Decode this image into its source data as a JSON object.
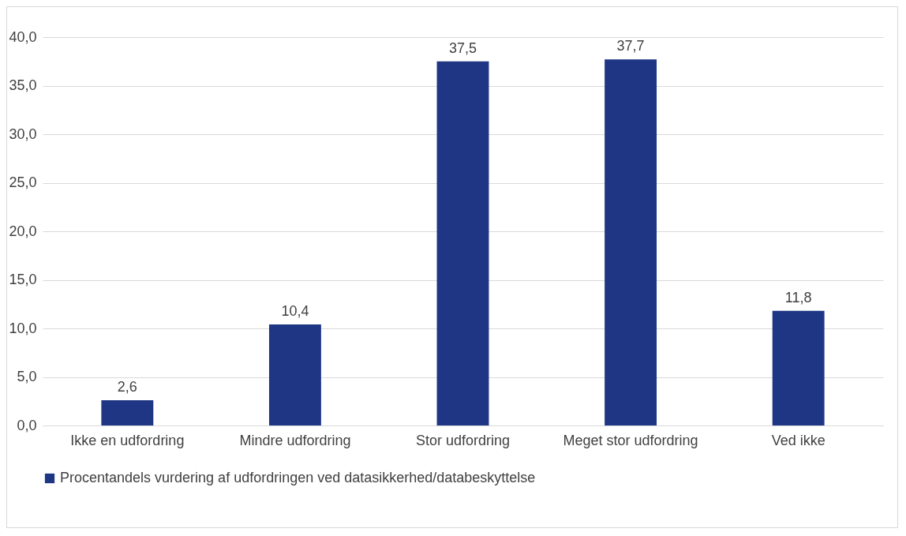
{
  "chart_data": {
    "type": "bar",
    "categories": [
      "Ikke en udfordring",
      "Mindre udfordring",
      "Stor udfordring",
      "Meget stor udfordring",
      "Ved ikke"
    ],
    "series": [
      {
        "name": "Procentandels vurdering af udfordringen ved datasikkerhed/databeskyttelse",
        "color": "#1f3685",
        "values": [
          2.6,
          10.4,
          37.5,
          37.7,
          11.8
        ],
        "value_labels": [
          "2,6",
          "10,4",
          "37,5",
          "37,7",
          "11,8"
        ]
      }
    ],
    "ylim": [
      0,
      40
    ],
    "yticks": [
      {
        "value": 0,
        "label": "0,0"
      },
      {
        "value": 5,
        "label": "5,0"
      },
      {
        "value": 10,
        "label": "10,0"
      },
      {
        "value": 15,
        "label": "15,0"
      },
      {
        "value": 20,
        "label": "20,0"
      },
      {
        "value": 25,
        "label": "25,0"
      },
      {
        "value": 30,
        "label": "30,0"
      },
      {
        "value": 35,
        "label": "35,0"
      },
      {
        "value": 40,
        "label": "40,0"
      }
    ],
    "grid": "y",
    "legend": "bottom"
  }
}
